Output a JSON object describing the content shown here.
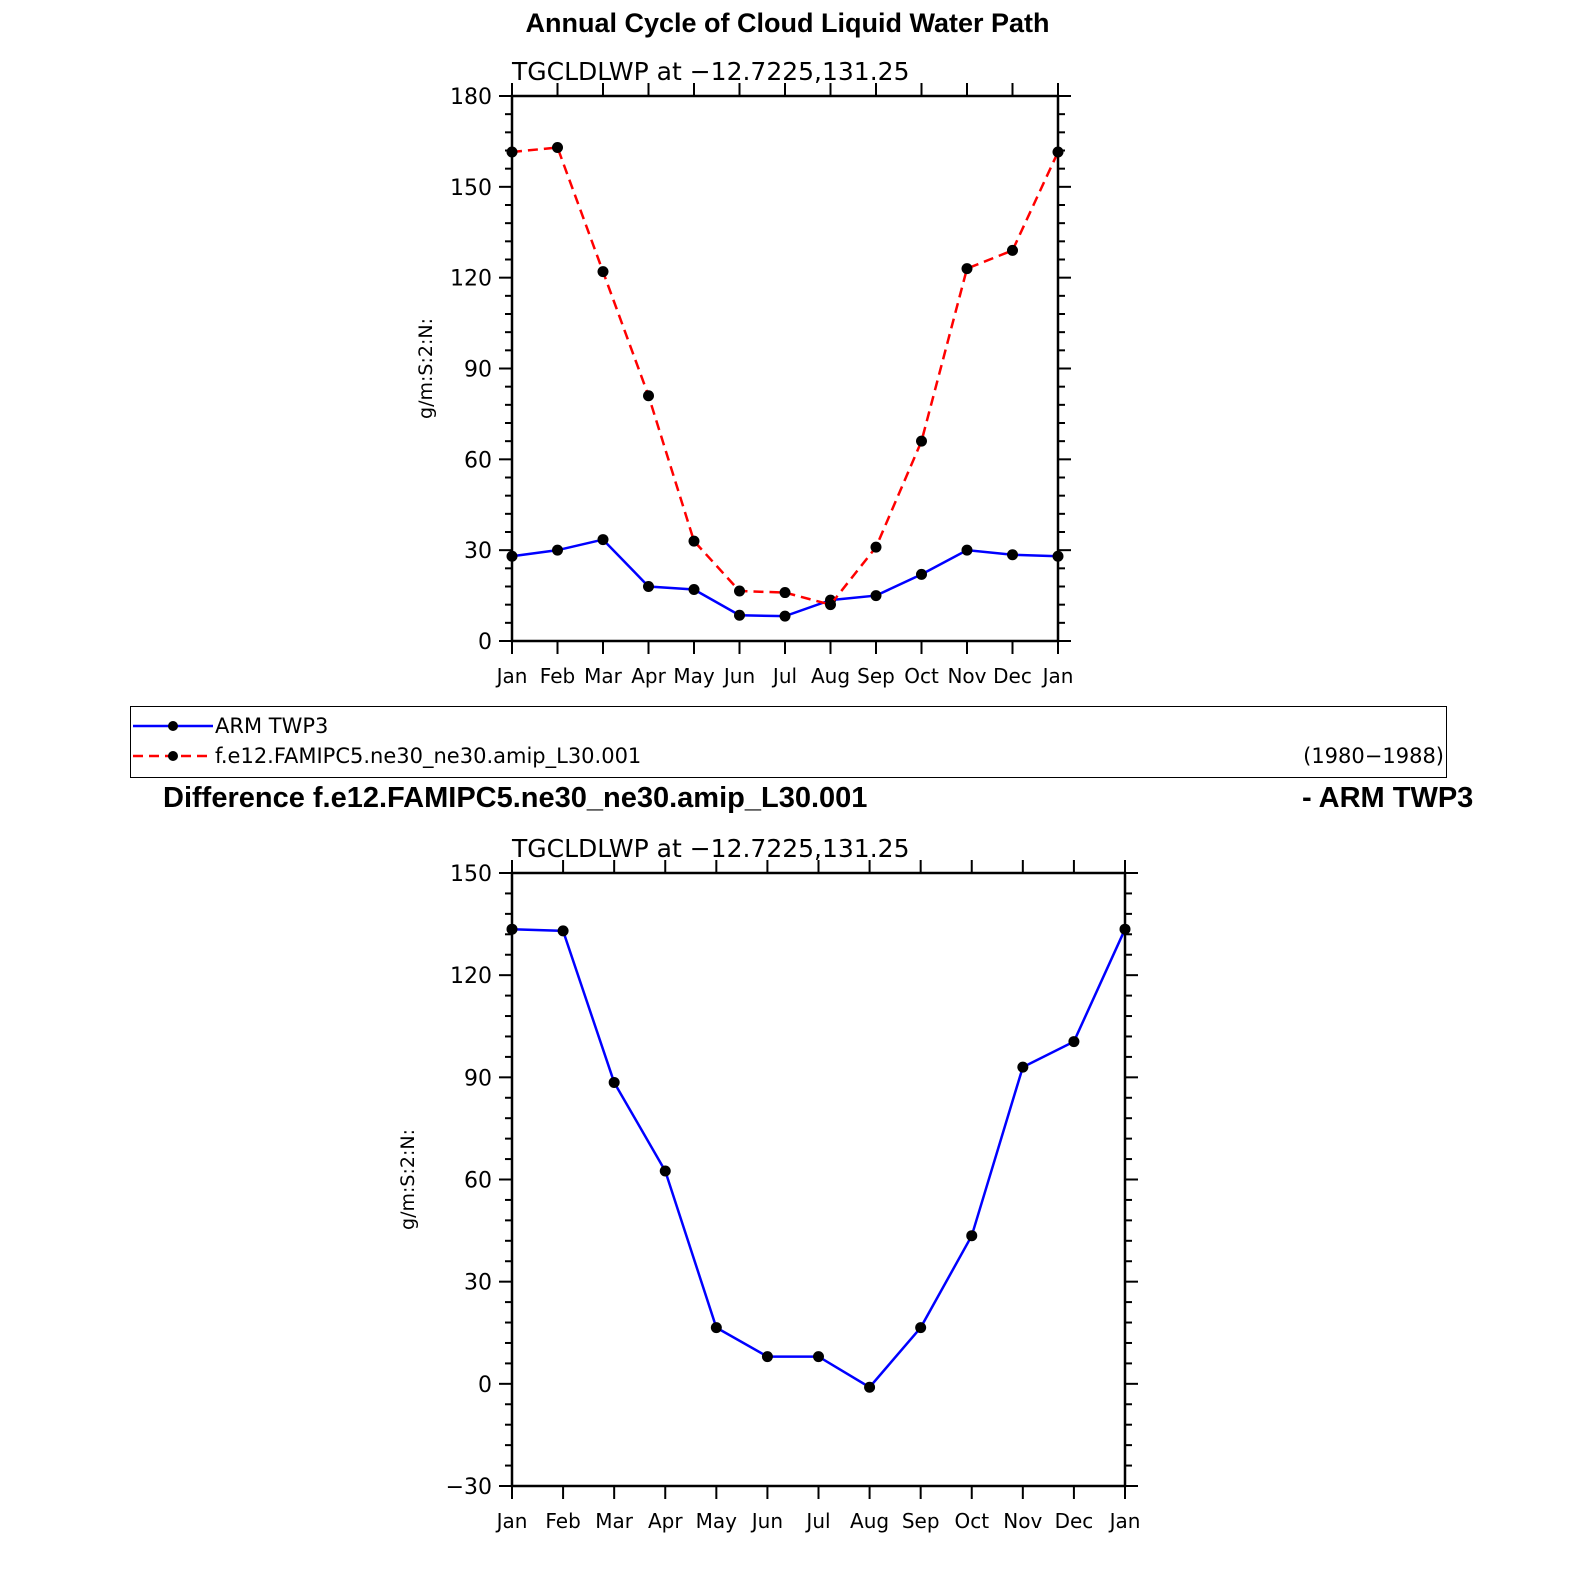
{
  "titles": {
    "main": "Annual Cycle of Cloud Liquid Water Path",
    "diff_left": "Difference f.e12.FAMIPC5.ne30_ne30.amip_L30.001",
    "diff_right": "- ARM TWP3"
  },
  "legend": {
    "years": "(1980−1988)"
  },
  "colors": {
    "obs": "#0000ff",
    "model": "#ff0000",
    "marker": "#000000"
  },
  "chart_data": [
    {
      "type": "line",
      "subtitle": "TGCLDLWP  at −12.7225,131.25",
      "xlabel": "",
      "ylabel": "g/m:S:2:N:",
      "categories": [
        "Jan",
        "Feb",
        "Mar",
        "Apr",
        "May",
        "Jun",
        "Jul",
        "Aug",
        "Sep",
        "Oct",
        "Nov",
        "Dec",
        "Jan"
      ],
      "ylim": [
        0,
        180
      ],
      "yticks": [
        0,
        30,
        60,
        90,
        120,
        150,
        180
      ],
      "grid": false,
      "legend_position": "bottom",
      "series": [
        {
          "name": "ARM  TWP3",
          "style": "solid",
          "color": "#0000ff",
          "values": [
            28,
            30,
            33.5,
            18,
            17,
            8.5,
            8.2,
            13.5,
            15,
            22,
            30,
            28.5,
            28
          ]
        },
        {
          "name": "f.e12.FAMIPC5.ne30_ne30.amip_L30.001",
          "style": "dashed",
          "color": "#ff0000",
          "values": [
            161.5,
            163,
            122,
            81,
            33,
            16.5,
            16,
            12,
            31,
            66,
            123,
            129,
            161.5
          ]
        }
      ]
    },
    {
      "type": "line",
      "subtitle": "TGCLDLWP  at −12.7225,131.25",
      "xlabel": "",
      "ylabel": "g/m:S:2:N:",
      "categories": [
        "Jan",
        "Feb",
        "Mar",
        "Apr",
        "May",
        "Jun",
        "Jul",
        "Aug",
        "Sep",
        "Oct",
        "Nov",
        "Dec",
        "Jan"
      ],
      "ylim": [
        -30,
        150
      ],
      "yticks": [
        -30,
        0,
        30,
        60,
        90,
        120,
        150
      ],
      "ytick_labels": [
        "−30",
        "0",
        "30",
        "60",
        "90",
        "120",
        "150"
      ],
      "grid": false,
      "series": [
        {
          "style": "solid",
          "color": "#0000ff",
          "values": [
            133.5,
            133,
            88.5,
            62.5,
            16.5,
            8,
            8,
            -1,
            16.5,
            43.5,
            93,
            100.5,
            133.5
          ]
        }
      ]
    }
  ]
}
